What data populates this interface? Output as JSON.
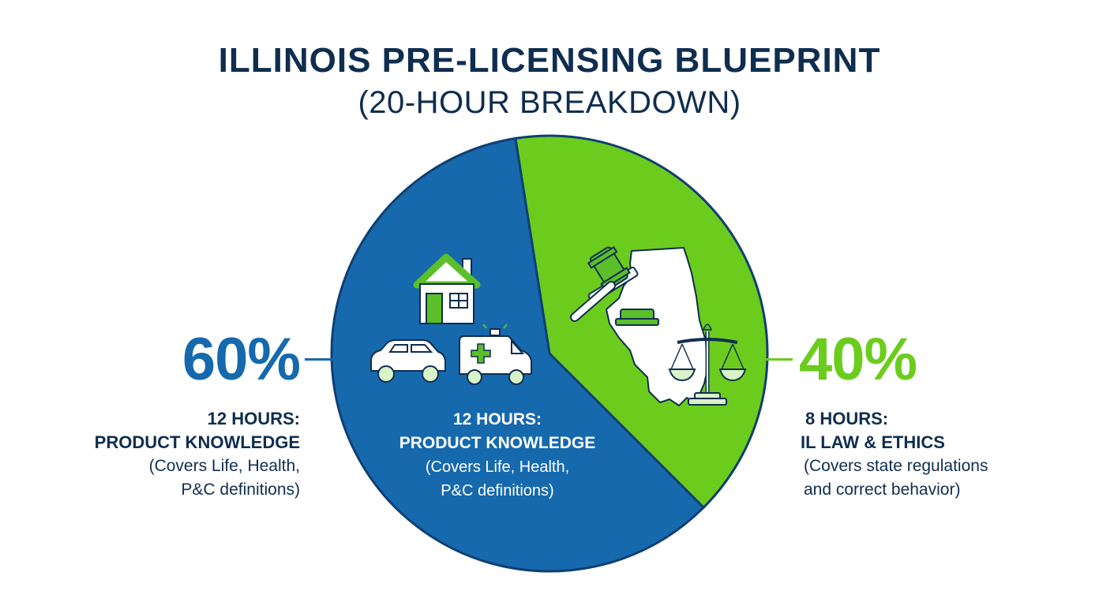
{
  "title": "ILLINOIS PRE-LICENSING BLUEPRINT",
  "subtitle": "(20-HOUR BREAKDOWN)",
  "colors": {
    "product": "#1669ad",
    "product_border": "#0f3f73",
    "law": "#6ccc1d",
    "law_border": "#0f3f73",
    "icon_green": "#5bbf2a",
    "icon_outline": "#0f2e4f"
  },
  "left_callout": {
    "percent": "60%",
    "hours": "12 HOURS:",
    "topic": "PRODUCT KNOWLEDGE",
    "note_line1": "(Covers Life, Health,",
    "note_line2": "P&C definitions)"
  },
  "inner_label": {
    "hours": "12 HOURS:",
    "topic": "PRODUCT KNOWLEDGE",
    "note_line1": "(Covers Life, Health,",
    "note_line2": "P&C definitions)"
  },
  "right_callout": {
    "percent": "40%",
    "hours": "8 HOURS:",
    "topic": "IL LAW & ETHICS",
    "note_line1": "(Covers state regulations",
    "note_line2": "and correct behavior)"
  },
  "icons": {
    "product_slice": [
      "house-icon",
      "car-icon",
      "ambulance-icon"
    ],
    "law_slice": [
      "gavel-icon",
      "illinois-map-icon",
      "scales-icon"
    ]
  },
  "chart_data": {
    "type": "pie",
    "title": "ILLINOIS PRE-LICENSING BLUEPRINT",
    "subtitle": "(20-HOUR BREAKDOWN)",
    "total_hours": 20,
    "slices": [
      {
        "label": "PRODUCT KNOWLEDGE",
        "hours": 12,
        "percent": 60,
        "color": "#1669ad"
      },
      {
        "label": "IL LAW & ETHICS",
        "hours": 8,
        "percent": 40,
        "color": "#6ccc1d"
      }
    ]
  }
}
